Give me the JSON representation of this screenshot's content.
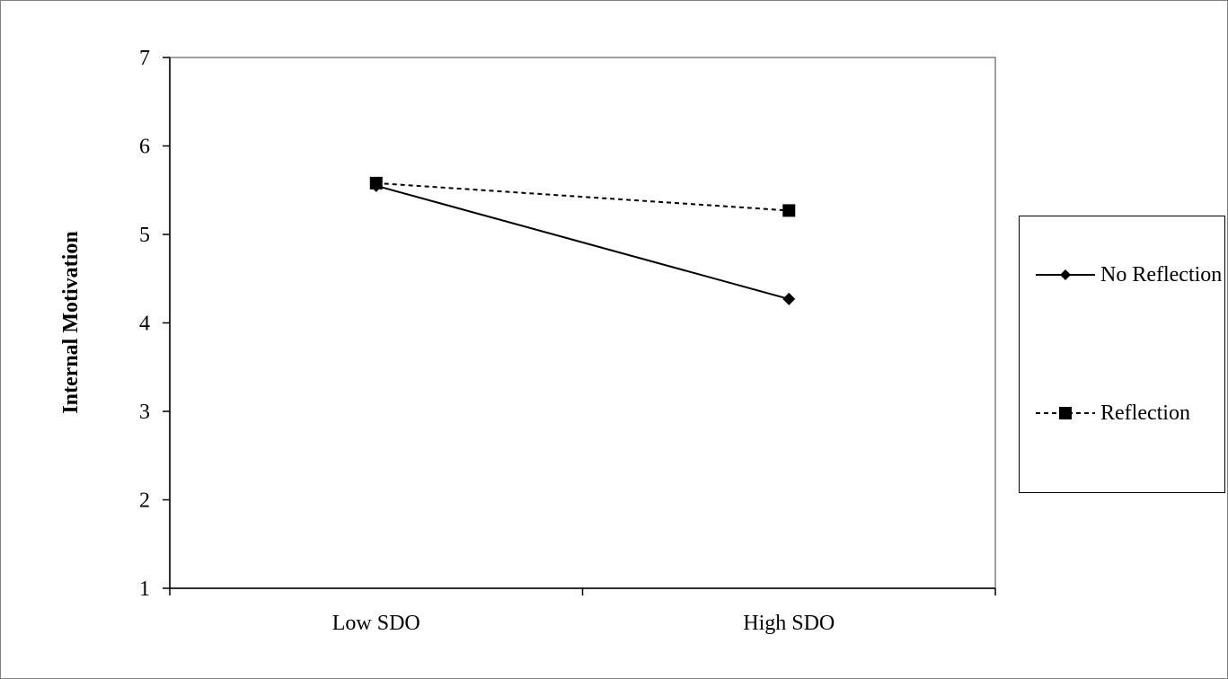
{
  "chart_data": {
    "type": "line",
    "categories": [
      "Low SDO",
      "High SDO"
    ],
    "series": [
      {
        "name": "No Reflection",
        "values": [
          5.55,
          4.27
        ],
        "marker": "diamond",
        "line_style": "solid",
        "color": "#000000"
      },
      {
        "name": "Reflection",
        "values": [
          5.58,
          5.27
        ],
        "marker": "square",
        "line_style": "dashed",
        "color": "#000000"
      }
    ],
    "title": "",
    "xlabel": "",
    "ylabel": "Internal Motivation",
    "ylim": [
      1,
      7
    ],
    "yticks": [
      "1",
      "2",
      "3",
      "4",
      "5",
      "6",
      "7"
    ],
    "grid": false,
    "legend_position": "right"
  }
}
